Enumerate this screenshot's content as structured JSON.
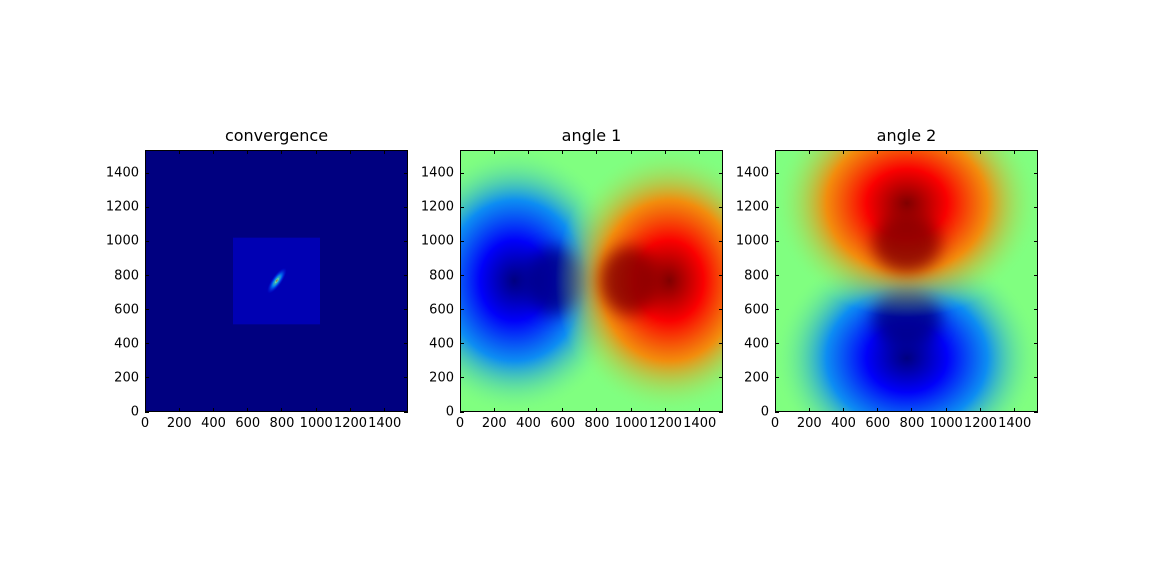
{
  "chart_data": [
    {
      "type": "heatmap",
      "title": "convergence",
      "colormap": "jet",
      "xlim": [
        0,
        1536
      ],
      "ylim": [
        0,
        1536
      ],
      "xticks": [
        0,
        200,
        400,
        600,
        800,
        1000,
        1200,
        1400
      ],
      "xtick_labels": [
        "0",
        "200",
        "400",
        "600",
        "800",
        "1000",
        "1200",
        "1400"
      ],
      "yticks": [
        0,
        200,
        400,
        600,
        800,
        1000,
        1200,
        1400
      ],
      "ytick_labels": [
        "0",
        "200",
        "400",
        "600",
        "800",
        "1000",
        "1200",
        "1400"
      ],
      "background_value": 0.0,
      "features": [
        {
          "kind": "region",
          "x_range": [
            512,
            1024
          ],
          "y_range": [
            512,
            1024
          ],
          "value": 0.05
        },
        {
          "kind": "blob",
          "center": [
            770,
            770
          ],
          "sigma": [
            90,
            30
          ],
          "angle_deg": 55,
          "peak": 0.55
        },
        {
          "kind": "blob",
          "center": [
            770,
            770
          ],
          "sigma": [
            30,
            10
          ],
          "angle_deg": 55,
          "peak": 0.9
        }
      ]
    },
    {
      "type": "heatmap",
      "title": "angle 1",
      "colormap": "jet",
      "xlim": [
        0,
        1536
      ],
      "ylim": [
        0,
        1536
      ],
      "xticks": [
        0,
        200,
        400,
        600,
        800,
        1000,
        1200,
        1400
      ],
      "xtick_labels": [
        "0",
        "200",
        "400",
        "600",
        "800",
        "1000",
        "1200",
        "1400"
      ],
      "yticks": [
        0,
        200,
        400,
        600,
        800,
        1000,
        1200,
        1400
      ],
      "ytick_labels": [
        "0",
        "200",
        "400",
        "600",
        "800",
        "1000",
        "1200",
        "1400"
      ],
      "field": "dipole",
      "center": [
        770,
        770
      ],
      "axis": "x",
      "center_value": 0.5,
      "min_value": 0.0,
      "max_value": 1.0
    },
    {
      "type": "heatmap",
      "title": "angle 2",
      "colormap": "jet",
      "xlim": [
        0,
        1536
      ],
      "ylim": [
        0,
        1536
      ],
      "xticks": [
        0,
        200,
        400,
        600,
        800,
        1000,
        1200,
        1400
      ],
      "xtick_labels": [
        "0",
        "200",
        "400",
        "600",
        "800",
        "1000",
        "1200",
        "1400"
      ],
      "yticks": [
        0,
        200,
        400,
        600,
        800,
        1000,
        1200,
        1400
      ],
      "ytick_labels": [
        "0",
        "200",
        "400",
        "600",
        "800",
        "1000",
        "1200",
        "1400"
      ],
      "field": "dipole",
      "center": [
        770,
        770
      ],
      "axis": "y",
      "center_value": 0.5,
      "min_value": 0.0,
      "max_value": 1.0
    }
  ]
}
